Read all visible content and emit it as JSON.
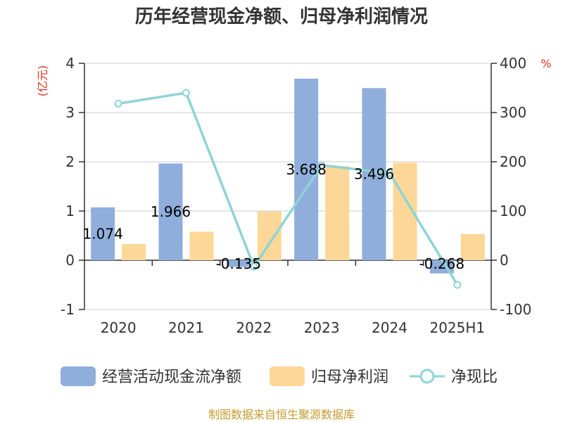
{
  "chart_data": {
    "type": "bar",
    "title": "历年经营现金净额、归母净利润情况",
    "categories": [
      "2020",
      "2021",
      "2022",
      "2023",
      "2024",
      "2025H1"
    ],
    "left_axis": {
      "unit": "(亿元)",
      "range": [
        -1,
        4
      ],
      "ticks": [
        "4",
        "3",
        "2",
        "1",
        "0",
        "-1"
      ],
      "tick_values": [
        4,
        3,
        2,
        1,
        0,
        -1
      ]
    },
    "right_axis": {
      "unit": "%",
      "range": [
        -100,
        400
      ],
      "ticks": [
        "400",
        "300",
        "200",
        "100",
        "0",
        "-100"
      ],
      "tick_values": [
        400,
        300,
        200,
        100,
        0,
        -100
      ]
    },
    "grid": true,
    "legend_position": "bottom",
    "series": [
      {
        "name": "经营活动现金流净额",
        "type": "bar",
        "axis": "left",
        "color": "#8faedb",
        "values": [
          1.074,
          1.966,
          -0.135,
          3.688,
          3.496,
          -0.268
        ],
        "labels": [
          "1.074",
          "1.966",
          "-0.135",
          "3.688",
          "3.496",
          "-0.268"
        ]
      },
      {
        "name": "归母净利润",
        "type": "bar",
        "axis": "left",
        "color": "#fdd797",
        "values": [
          0.33,
          0.58,
          0.99,
          1.91,
          1.98,
          0.53
        ]
      },
      {
        "name": "净现比",
        "type": "line",
        "axis": "right",
        "color": "#8ed4d6",
        "values": [
          318,
          340,
          -13,
          193,
          177,
          -50
        ]
      }
    ]
  },
  "source": "制图数据来自恒生聚源数据库"
}
